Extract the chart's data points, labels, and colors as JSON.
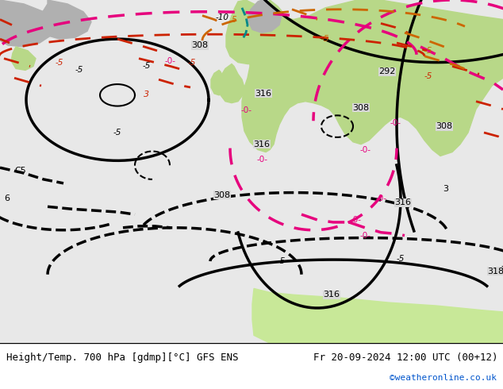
{
  "title_left": "Height/Temp. 700 hPa [gdmp][°C] GFS ENS",
  "title_right": "Fr 20-09-2024 12:00 UTC (00+12)",
  "credit": "©weatheronline.co.uk",
  "bg_color": "#e8e8e8",
  "land_green": "#b8d888",
  "land_green2": "#c8e898",
  "ocean_gray": "#d8d8d8",
  "mountain_gray": "#b0b0b0",
  "figsize": [
    6.34,
    4.9
  ],
  "dpi": 100,
  "bottom_bar_color": "#ffffff",
  "bottom_bar_height": 0.118,
  "title_fontsize": 9,
  "credit_fontsize": 8,
  "credit_color": "#0055cc"
}
